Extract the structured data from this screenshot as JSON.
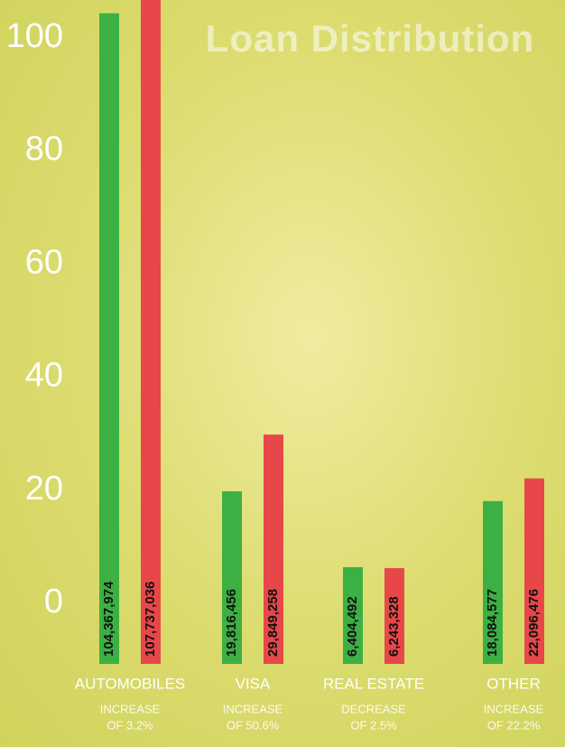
{
  "chart_data": {
    "type": "bar",
    "title": "Loan Distribution",
    "categories": [
      "AUTOMOBILES",
      "VISA",
      "REAL  ESTATE",
      "OTHER"
    ],
    "annotations": [
      {
        "change": "INCREASE",
        "amount": "OF  3.2%"
      },
      {
        "change": "INCREASE",
        "amount": "OF  50.6%"
      },
      {
        "change": "DECREASE",
        "amount": "OF  2.5%"
      },
      {
        "change": "INCREASE",
        "amount": "OF  22.2%"
      }
    ],
    "series": [
      {
        "color": "#3cb043",
        "values": [
          104.367974,
          19.816456,
          6.404492,
          18.084577
        ],
        "value_labels": [
          "104,367,974",
          "19,816,456",
          "6,404,492",
          "18,084,577"
        ]
      },
      {
        "color": "#e8474a",
        "values": [
          107.737036,
          29.849258,
          6.243328,
          22.096476
        ],
        "value_labels": [
          "107,737,036",
          "29,849,258",
          "6,243,328",
          "22,096,476"
        ]
      }
    ],
    "ylim": [
      0,
      100
    ],
    "yticks": [
      0,
      20,
      40,
      60,
      80,
      100
    ],
    "grid": false
  }
}
